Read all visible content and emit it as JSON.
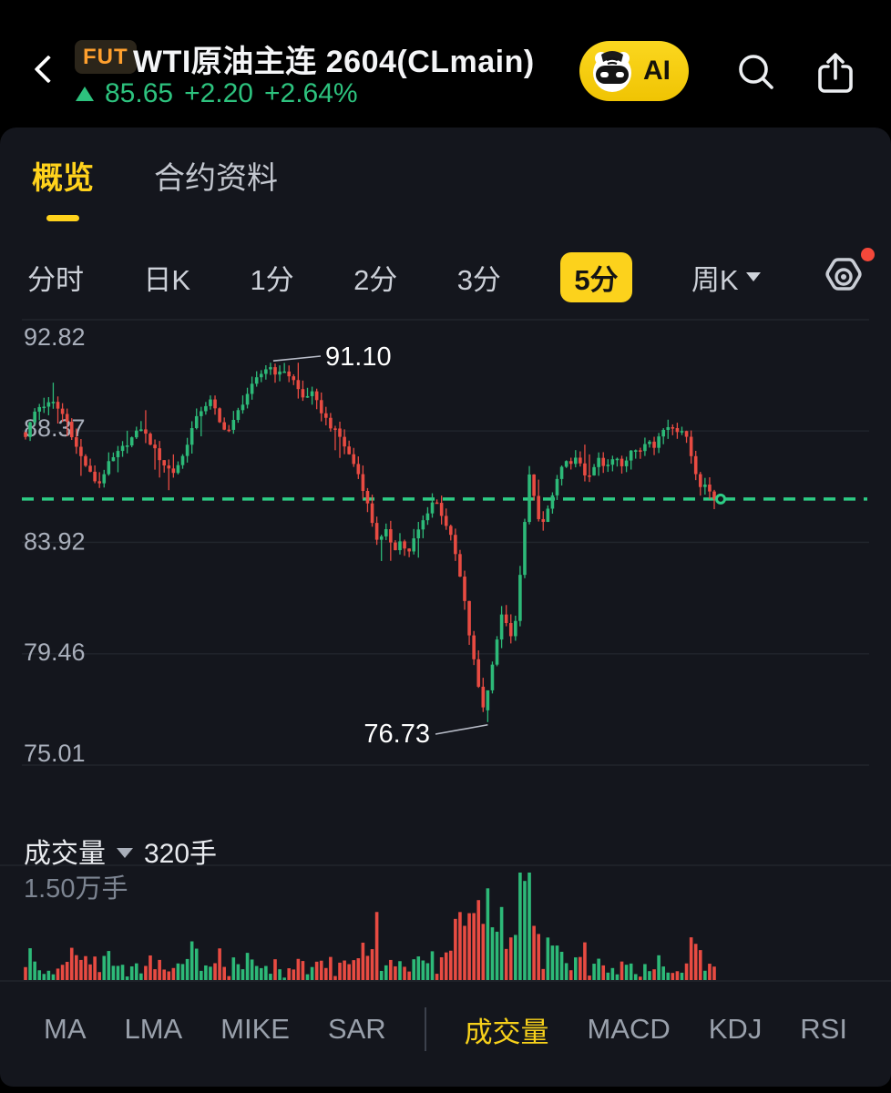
{
  "header": {
    "badge": "FUT",
    "title": "WTI原油主连 2604(CLmain)",
    "price": "85.65",
    "change": "+2.20",
    "change_pct": "+2.64%",
    "ai_label": "AI"
  },
  "tabs": {
    "overview": "概览",
    "contract": "合约资料"
  },
  "timeframes": {
    "items": [
      {
        "label": "分时"
      },
      {
        "label": "日K"
      },
      {
        "label": "1分"
      },
      {
        "label": "2分"
      },
      {
        "label": "3分"
      },
      {
        "label": "5分",
        "selected": true
      },
      {
        "label": "周K",
        "dropdown": true
      }
    ]
  },
  "chart_data": {
    "type": "candlestick",
    "title": "WTI原油主连 2604(CLmain) 5分K线",
    "y_tick_labels": [
      "92.82",
      "88.37",
      "83.92",
      "79.46",
      "75.01"
    ],
    "y_ticks": [
      92.82,
      88.37,
      83.92,
      79.46,
      75.01
    ],
    "ylim": [
      75.01,
      92.82
    ],
    "grid": true,
    "current_price": 85.65,
    "high_annotation": {
      "price": 91.1,
      "label": "91.10"
    },
    "low_annotation": {
      "price": 76.73,
      "label": "76.73"
    },
    "candle_count": 150,
    "close_path": [
      [
        28,
        88.2
      ],
      [
        40,
        89.3
      ],
      [
        58,
        89.5
      ],
      [
        72,
        88.9
      ],
      [
        85,
        87.6
      ],
      [
        100,
        86.6
      ],
      [
        108,
        86.2
      ],
      [
        118,
        87.0
      ],
      [
        132,
        87.6
      ],
      [
        145,
        88.1
      ],
      [
        155,
        88.5
      ],
      [
        165,
        87.9
      ],
      [
        178,
        87.1
      ],
      [
        190,
        86.7
      ],
      [
        200,
        87.3
      ],
      [
        212,
        88.6
      ],
      [
        222,
        89.3
      ],
      [
        232,
        89.6
      ],
      [
        242,
        88.6
      ],
      [
        252,
        88.4
      ],
      [
        262,
        89.2
      ],
      [
        272,
        89.9
      ],
      [
        283,
        90.5
      ],
      [
        295,
        91.0
      ],
      [
        305,
        90.6
      ],
      [
        312,
        90.8
      ],
      [
        322,
        90.4
      ],
      [
        332,
        89.7
      ],
      [
        342,
        89.9
      ],
      [
        352,
        89.2
      ],
      [
        362,
        88.6
      ],
      [
        372,
        88.2
      ],
      [
        382,
        87.5
      ],
      [
        392,
        86.8
      ],
      [
        400,
        85.9
      ],
      [
        408,
        84.8
      ],
      [
        415,
        83.9
      ],
      [
        425,
        84.4
      ],
      [
        432,
        83.6
      ],
      [
        440,
        84.0
      ],
      [
        448,
        83.4
      ],
      [
        455,
        84.1
      ],
      [
        462,
        84.6
      ],
      [
        470,
        85.2
      ],
      [
        477,
        85.7
      ],
      [
        484,
        85.1
      ],
      [
        490,
        84.6
      ],
      [
        497,
        83.9
      ],
      [
        503,
        82.9
      ],
      [
        510,
        81.5
      ],
      [
        516,
        80.0
      ],
      [
        522,
        78.8
      ],
      [
        528,
        77.6
      ],
      [
        533,
        77.1
      ],
      [
        537,
        78.3
      ],
      [
        542,
        79.5
      ],
      [
        547,
        80.3
      ],
      [
        552,
        81.2
      ],
      [
        557,
        80.6
      ],
      [
        562,
        79.9
      ],
      [
        567,
        81.0
      ],
      [
        572,
        83.0
      ],
      [
        577,
        85.3
      ],
      [
        581,
        86.6
      ],
      [
        585,
        85.9
      ],
      [
        590,
        84.9
      ],
      [
        595,
        84.6
      ],
      [
        600,
        85.1
      ],
      [
        605,
        85.6
      ],
      [
        610,
        86.2
      ],
      [
        616,
        86.8
      ],
      [
        622,
        87.3
      ],
      [
        628,
        86.9
      ],
      [
        634,
        87.4
      ],
      [
        640,
        86.8
      ],
      [
        646,
        86.4
      ],
      [
        652,
        86.9
      ],
      [
        658,
        87.3
      ],
      [
        664,
        86.8
      ],
      [
        670,
        87.1
      ],
      [
        676,
        87.4
      ],
      [
        682,
        87.0
      ],
      [
        688,
        87.3
      ],
      [
        694,
        87.7
      ],
      [
        700,
        87.4
      ],
      [
        706,
        87.8
      ],
      [
        712,
        88.1
      ],
      [
        718,
        87.8
      ],
      [
        724,
        88.2
      ],
      [
        730,
        88.5
      ],
      [
        736,
        88.6
      ],
      [
        742,
        88.4
      ],
      [
        748,
        88.5
      ],
      [
        754,
        88.0
      ],
      [
        760,
        87.3
      ],
      [
        765,
        86.5
      ],
      [
        770,
        86.0
      ],
      [
        775,
        86.3
      ],
      [
        780,
        85.9
      ],
      [
        784,
        85.65
      ]
    ],
    "volume_axis_max": 15000,
    "volume_axis_max_label": "1.50万手",
    "volume_spikes": [
      {
        "x": 583,
        "value": 15000
      },
      {
        "x": 534,
        "value": 12800
      },
      {
        "x": 413,
        "value": 9500
      }
    ]
  },
  "volume_header": {
    "label": "成交量",
    "value": "320手"
  },
  "indicator_tabs": {
    "items": [
      {
        "label": "MA"
      },
      {
        "label": "LMA"
      },
      {
        "label": "MIKE"
      },
      {
        "label": "SAR"
      },
      {
        "divider": true
      },
      {
        "label": "成交量",
        "selected": true
      },
      {
        "label": "MACD"
      },
      {
        "label": "KDJ"
      },
      {
        "label": "RSI"
      }
    ]
  },
  "colors": {
    "up": "#2db978",
    "down": "#e84b42",
    "accent": "#ffd21c",
    "dashed_line": "#2ecc85",
    "grid": "#21252d",
    "tick_text": "#a9afbb"
  }
}
